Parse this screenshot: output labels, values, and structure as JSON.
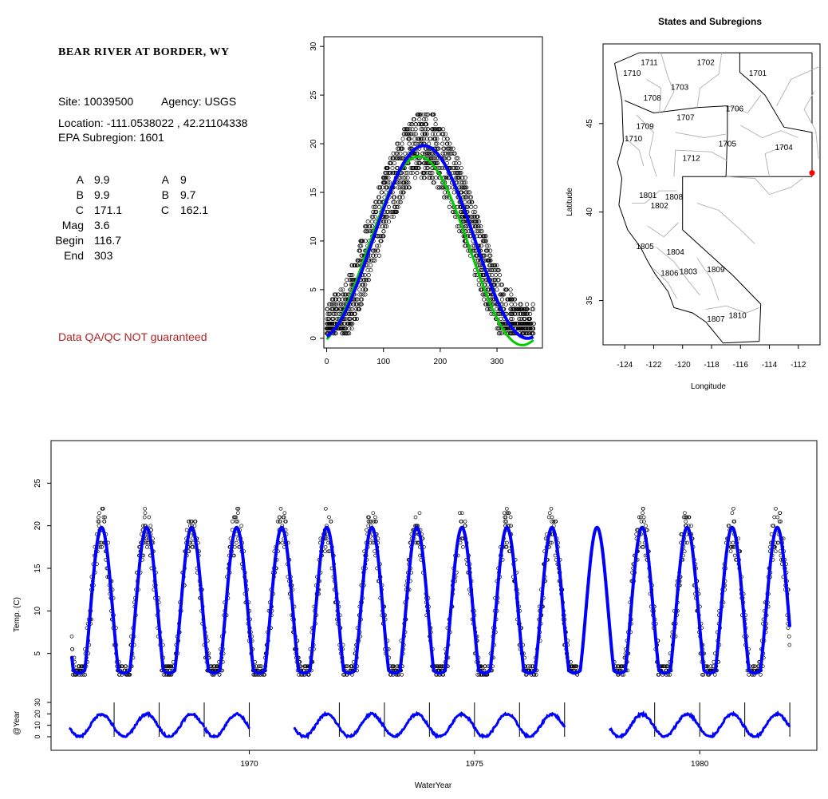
{
  "info": {
    "title": "BEAR RIVER AT BORDER, WY",
    "site": "Site: 10039500",
    "agency": "Agency: USGS",
    "location": "Location: -111.0538022 , 42.21104338",
    "subregion": "EPA Subregion: 1601",
    "params_left": [
      {
        "label": "A",
        "value": "9.9"
      },
      {
        "label": "B",
        "value": "9.9"
      },
      {
        "label": "C",
        "value": "171.1"
      },
      {
        "label": "Mag",
        "value": "3.6"
      },
      {
        "label": "Begin",
        "value": "116.7"
      },
      {
        "label": "End",
        "value": "303"
      }
    ],
    "params_right": [
      {
        "label": "A",
        "value": "9"
      },
      {
        "label": "B",
        "value": "9.7"
      },
      {
        "label": "C",
        "value": "162.1"
      }
    ],
    "qa_note": "Data QA/QC NOT guaranteed",
    "qa_color": "#b22222"
  },
  "chart_data": [
    {
      "type": "scatter",
      "name_internal": "seasonal",
      "x_ticks": [
        "0",
        "100",
        "200",
        "300"
      ],
      "y_ticks": [
        "0",
        "5",
        "10",
        "15",
        "20",
        "25",
        "30"
      ],
      "xlim": [
        -5,
        380
      ],
      "ylim": [
        -1,
        31
      ],
      "series": [
        {
          "kind": "points",
          "color": "#000000"
        },
        {
          "kind": "fit",
          "color": "#00cc00",
          "A": 9.0,
          "B": 9.7,
          "C": 162.1
        },
        {
          "kind": "fit",
          "color": "#0000ff",
          "A": 9.9,
          "B": 9.9,
          "C": 171.1
        }
      ]
    },
    {
      "type": "map",
      "title": "States and Subregions",
      "xlabel": "Longitude",
      "ylabel": "Latitude",
      "x_ticks": [
        "-124",
        "-122",
        "-120",
        "-118",
        "-116",
        "-114",
        "-112"
      ],
      "y_ticks": [
        "35",
        "40",
        "45"
      ],
      "xlim": [
        -125.5,
        -110.5
      ],
      "ylim": [
        32.5,
        49.5
      ],
      "site": {
        "lon": -111.0538022,
        "lat": 42.21104338,
        "color": "#ff0000"
      },
      "region_labels": [
        {
          "text": "1702",
          "lon": -118.4,
          "lat": 48.3
        },
        {
          "text": "1701",
          "lon": -114.8,
          "lat": 47.7
        },
        {
          "text": "1711",
          "lon": -122.3,
          "lat": 48.3
        },
        {
          "text": "1710",
          "lon": -123.5,
          "lat": 47.7
        },
        {
          "text": "1703",
          "lon": -120.2,
          "lat": 46.9
        },
        {
          "text": "1708",
          "lon": -122.1,
          "lat": 46.3
        },
        {
          "text": "1706",
          "lon": -116.4,
          "lat": 45.7
        },
        {
          "text": "1707",
          "lon": -119.8,
          "lat": 45.2
        },
        {
          "text": "1709",
          "lon": -122.6,
          "lat": 44.7
        },
        {
          "text": "1710",
          "lon": -123.4,
          "lat": 44.0
        },
        {
          "text": "1705",
          "lon": -116.9,
          "lat": 43.7
        },
        {
          "text": "1704",
          "lon": -113.0,
          "lat": 43.5
        },
        {
          "text": "1712",
          "lon": -119.4,
          "lat": 42.9
        },
        {
          "text": "1801",
          "lon": -122.4,
          "lat": 40.8
        },
        {
          "text": "1808",
          "lon": -120.6,
          "lat": 40.7
        },
        {
          "text": "1802",
          "lon": -121.6,
          "lat": 40.2
        },
        {
          "text": "1805",
          "lon": -122.6,
          "lat": 37.9
        },
        {
          "text": "1804",
          "lon": -120.5,
          "lat": 37.6
        },
        {
          "text": "1809",
          "lon": -117.7,
          "lat": 36.6
        },
        {
          "text": "1806",
          "lon": -120.9,
          "lat": 36.4
        },
        {
          "text": "1803",
          "lon": -119.6,
          "lat": 36.5
        },
        {
          "text": "1807",
          "lon": -117.7,
          "lat": 33.8
        },
        {
          "text": "1810",
          "lon": -116.2,
          "lat": 34.0
        }
      ]
    },
    {
      "type": "line",
      "name_internal": "timeseries",
      "xlabel": "WaterYear",
      "ylabel": "Temp. (C)",
      "x_ticks": [
        "1970",
        "1975",
        "1980"
      ],
      "y_ticks": [
        "5",
        "10",
        "15",
        "20",
        "25"
      ],
      "xlim": [
        1965.6,
        1982.6
      ],
      "ylim": [
        0,
        30
      ],
      "start": 1966.06,
      "end": 1982.0,
      "gap_years": [
        1977.3,
        1978.1
      ],
      "color": "#0000ff"
    },
    {
      "type": "line",
      "name_internal": "byyear",
      "ylabel": "@Year",
      "y_ticks": [
        "0",
        "10",
        "20",
        "30"
      ],
      "ylim": [
        0,
        30
      ],
      "years": [
        1967,
        1968,
        1969,
        1970,
        1972,
        1973,
        1974,
        1975,
        1976,
        1977,
        1979,
        1980,
        1981,
        1982
      ],
      "color": "#0000ff"
    }
  ]
}
